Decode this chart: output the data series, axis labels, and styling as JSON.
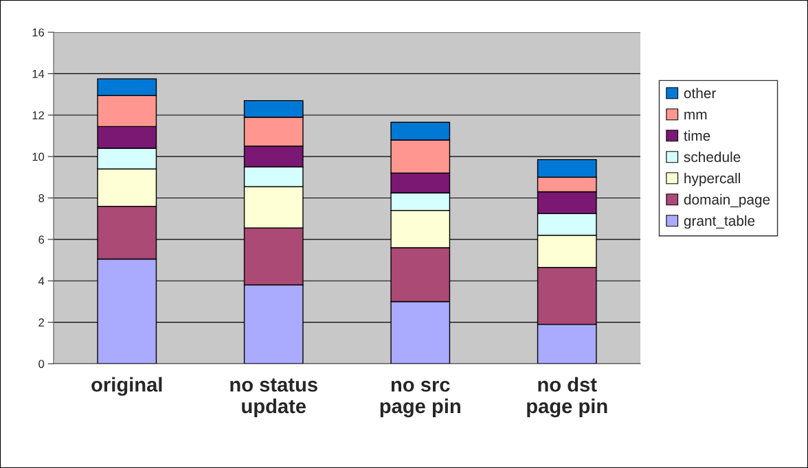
{
  "chart_data": {
    "type": "bar",
    "stacked": true,
    "categories": [
      "original",
      "no status\nupdate",
      "no src\npage pin",
      "no dst\npage pin"
    ],
    "series": [
      {
        "name": "grant_table",
        "color": "#aaaaff",
        "values": [
          5.05,
          3.8,
          3.0,
          1.9
        ]
      },
      {
        "name": "domain_page",
        "color": "#aa4a75",
        "values": [
          2.55,
          2.75,
          2.6,
          2.75
        ]
      },
      {
        "name": "hypercall",
        "color": "#ffffd5",
        "values": [
          1.8,
          2.0,
          1.8,
          1.55
        ]
      },
      {
        "name": "schedule",
        "color": "#d5ffff",
        "values": [
          1.0,
          0.95,
          0.85,
          1.05
        ]
      },
      {
        "name": "time",
        "color": "#7b1874",
        "values": [
          1.05,
          1.0,
          0.95,
          1.05
        ]
      },
      {
        "name": "mm",
        "color": "#ff9790",
        "values": [
          1.5,
          1.4,
          1.6,
          0.7
        ]
      },
      {
        "name": "other",
        "color": "#0079d6",
        "values": [
          0.8,
          0.8,
          0.85,
          0.85
        ]
      }
    ],
    "ylim": [
      0,
      16
    ],
    "yticks": [
      0,
      2,
      4,
      6,
      8,
      10,
      12,
      14,
      16
    ],
    "grid": "y",
    "legend": "right"
  }
}
